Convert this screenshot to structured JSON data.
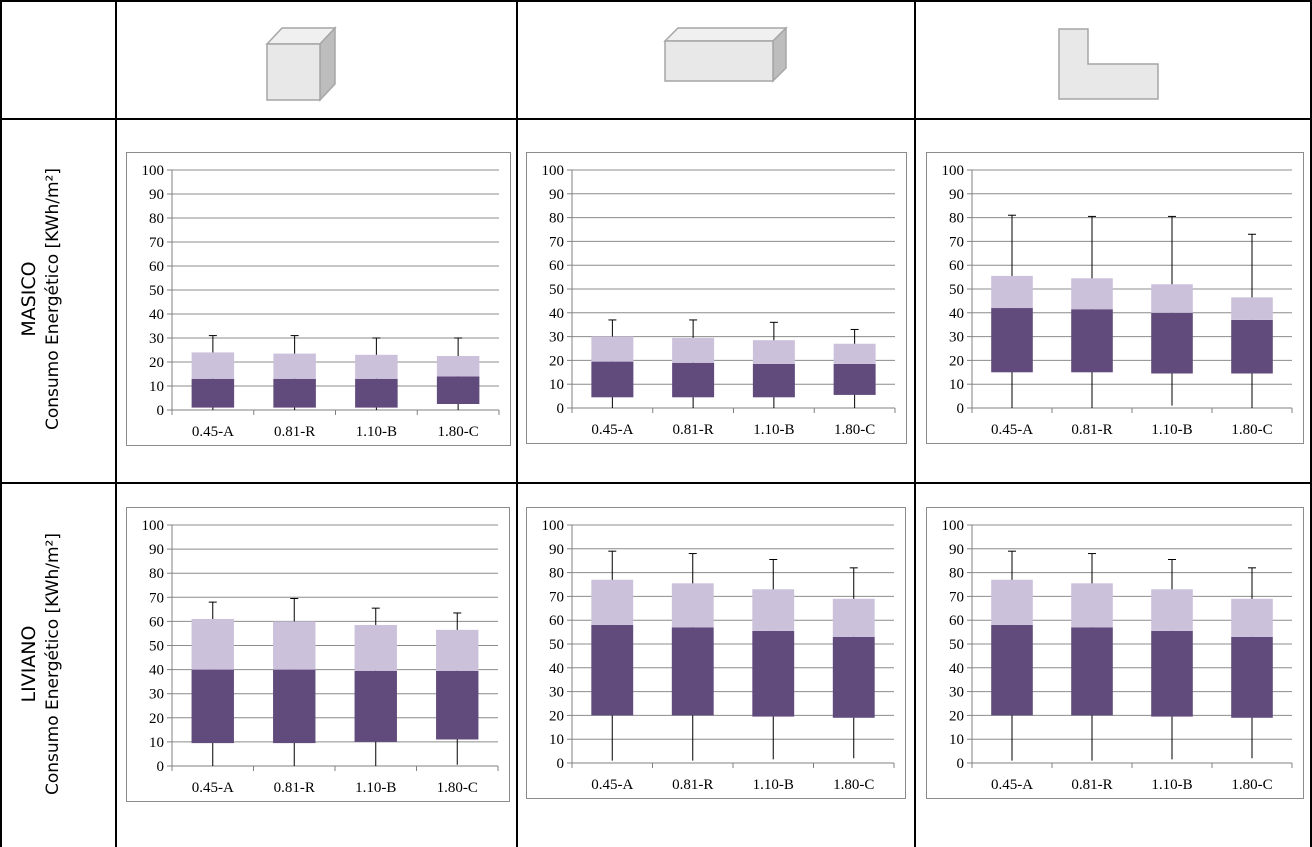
{
  "colors": {
    "dark": "#614A7C",
    "light": "#CCC1DB",
    "grid": "#8C8C8C",
    "axis": "#808080",
    "border": "#8C8C8C",
    "shape_fill": "#E8E8E8",
    "shape_stroke": "#A6A6A6"
  },
  "header": {
    "icons": [
      "cube-shape",
      "bar-shape",
      "l-shape"
    ]
  },
  "rows": [
    {
      "name": "MASICO",
      "ylabel": "Consumo Energético [KWh/m²]"
    },
    {
      "name": "LIVIANO",
      "ylabel": "Consumo Energético [KWh/m²]"
    }
  ],
  "chart_data": [
    {
      "type": "bar",
      "row": "MASICO",
      "column": 1,
      "categories": [
        "0.45-A",
        "0.81-R",
        "1.10-B",
        "1.80-C"
      ],
      "ylim": [
        0,
        100
      ],
      "yticks": [
        0,
        10,
        20,
        30,
        40,
        50,
        60,
        70,
        80,
        90,
        100
      ],
      "grid": true,
      "series": [
        {
          "role": "box_lower",
          "values": [
            [
              1,
              13
            ],
            [
              1,
              13
            ],
            [
              1,
              13
            ],
            [
              2.5,
              14
            ]
          ]
        },
        {
          "role": "box_upper",
          "values": [
            [
              13,
              24
            ],
            [
              13,
              23.5
            ],
            [
              13,
              23
            ],
            [
              14,
              22.5
            ]
          ]
        },
        {
          "role": "whisker",
          "values": [
            [
              0,
              31
            ],
            [
              0,
              31
            ],
            [
              0,
              30
            ],
            [
              0,
              30
            ]
          ]
        }
      ]
    },
    {
      "type": "bar",
      "row": "MASICO",
      "column": 2,
      "categories": [
        "0.45-A",
        "0.81-R",
        "1.10-B",
        "1.80-C"
      ],
      "ylim": [
        0,
        100
      ],
      "yticks": [
        0,
        10,
        20,
        30,
        40,
        50,
        60,
        70,
        80,
        90,
        100
      ],
      "grid": true,
      "series": [
        {
          "role": "box_lower",
          "values": [
            [
              4.5,
              19.5
            ],
            [
              4.5,
              19
            ],
            [
              4.5,
              18.5
            ],
            [
              5.5,
              18.5
            ]
          ]
        },
        {
          "role": "box_upper",
          "values": [
            [
              19.5,
              30
            ],
            [
              19,
              29.5
            ],
            [
              18.5,
              28.5
            ],
            [
              18.5,
              27
            ]
          ]
        },
        {
          "role": "whisker",
          "values": [
            [
              0,
              37
            ],
            [
              0,
              37
            ],
            [
              0,
              36
            ],
            [
              0,
              33
            ]
          ]
        }
      ]
    },
    {
      "type": "bar",
      "row": "MASICO",
      "column": 3,
      "categories": [
        "0.45-A",
        "0.81-R",
        "1.10-B",
        "1.80-C"
      ],
      "ylim": [
        0,
        100
      ],
      "yticks": [
        0,
        10,
        20,
        30,
        40,
        50,
        60,
        70,
        80,
        90,
        100
      ],
      "grid": true,
      "series": [
        {
          "role": "box_lower",
          "values": [
            [
              15,
              42
            ],
            [
              15,
              41.5
            ],
            [
              14.5,
              40
            ],
            [
              14.5,
              37
            ]
          ]
        },
        {
          "role": "box_upper",
          "values": [
            [
              42,
              55.5
            ],
            [
              41.5,
              54.5
            ],
            [
              40,
              52
            ],
            [
              37,
              46.5
            ]
          ]
        },
        {
          "role": "whisker",
          "values": [
            [
              0,
              81
            ],
            [
              0,
              80.5
            ],
            [
              1,
              80.5
            ],
            [
              0,
              73
            ]
          ]
        }
      ]
    },
    {
      "type": "bar",
      "row": "LIVIANO",
      "column": 1,
      "categories": [
        "0.45-A",
        "0.81-R",
        "1.10-B",
        "1.80-C"
      ],
      "ylim": [
        0,
        100
      ],
      "yticks": [
        0,
        10,
        20,
        30,
        40,
        50,
        60,
        70,
        80,
        90,
        100
      ],
      "grid": true,
      "series": [
        {
          "role": "box_lower",
          "values": [
            [
              9.5,
              40
            ],
            [
              9.5,
              40
            ],
            [
              10,
              39.5
            ],
            [
              11,
              39.5
            ]
          ]
        },
        {
          "role": "box_upper",
          "values": [
            [
              40,
              61
            ],
            [
              40,
              60
            ],
            [
              39.5,
              58.5
            ],
            [
              39.5,
              56.5
            ]
          ]
        },
        {
          "role": "whisker",
          "values": [
            [
              0,
              68
            ],
            [
              0,
              69.5
            ],
            [
              0,
              65.5
            ],
            [
              0.5,
              63.5
            ]
          ]
        }
      ]
    },
    {
      "type": "bar",
      "row": "LIVIANO",
      "column": 2,
      "categories": [
        "0.45-A",
        "0.81-R",
        "1.10-B",
        "1.80-C"
      ],
      "ylim": [
        0,
        100
      ],
      "yticks": [
        0,
        10,
        20,
        30,
        40,
        50,
        60,
        70,
        80,
        90,
        100
      ],
      "grid": true,
      "series": [
        {
          "role": "box_lower",
          "values": [
            [
              20,
              58
            ],
            [
              20,
              57
            ],
            [
              19.5,
              55.5
            ],
            [
              19,
              53
            ]
          ]
        },
        {
          "role": "box_upper",
          "values": [
            [
              58,
              77
            ],
            [
              57,
              75.5
            ],
            [
              55.5,
              73
            ],
            [
              53,
              69
            ]
          ]
        },
        {
          "role": "whisker",
          "values": [
            [
              1,
              89
            ],
            [
              1,
              88
            ],
            [
              1.5,
              85.5
            ],
            [
              2,
              82
            ]
          ]
        }
      ]
    },
    {
      "type": "bar",
      "row": "LIVIANO",
      "column": 3,
      "categories": [
        "0.45-A",
        "0.81-R",
        "1.10-B",
        "1.80-C"
      ],
      "ylim": [
        0,
        100
      ],
      "yticks": [
        0,
        10,
        20,
        30,
        40,
        50,
        60,
        70,
        80,
        90,
        100
      ],
      "grid": true,
      "series": [
        {
          "role": "box_lower",
          "values": [
            [
              20,
              58
            ],
            [
              20,
              57
            ],
            [
              19.5,
              55.5
            ],
            [
              19,
              53
            ]
          ]
        },
        {
          "role": "box_upper",
          "values": [
            [
              58,
              77
            ],
            [
              57,
              75.5
            ],
            [
              55.5,
              73
            ],
            [
              53,
              69
            ]
          ]
        },
        {
          "role": "whisker",
          "values": [
            [
              1,
              89
            ],
            [
              1,
              88
            ],
            [
              1.5,
              85.5
            ],
            [
              2,
              82
            ]
          ]
        }
      ]
    }
  ]
}
